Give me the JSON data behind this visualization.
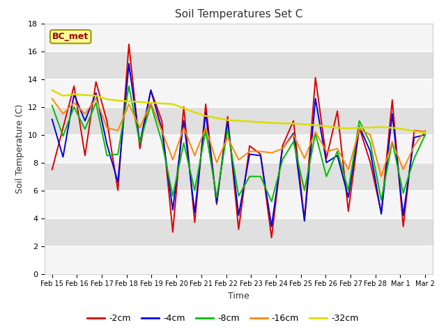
{
  "title": "Soil Temperatures Set C",
  "xlabel": "Time",
  "ylabel": "Soil Temperature (C)",
  "ylim": [
    0,
    18
  ],
  "annotation": "BC_met",
  "legend_entries": [
    "-2cm",
    "-4cm",
    "-8cm",
    "-16cm",
    "-32cm"
  ],
  "line_colors": [
    "#dd0000",
    "#0000dd",
    "#00bb00",
    "#ff8800",
    "#dddd00"
  ],
  "line_widths": [
    1.4,
    1.4,
    1.4,
    1.4,
    1.8
  ],
  "x_tick_labels": [
    "Feb 15",
    "Feb 16",
    "Feb 17",
    "Feb 18",
    "Feb 19",
    "Feb 20",
    "Feb 21",
    "Feb 22",
    "Feb 23",
    "Feb 24",
    "Feb 25",
    "Feb 26",
    "Feb 27",
    "Feb 28",
    "Mar 1",
    "Mar 2"
  ],
  "series_neg2cm": [
    7.5,
    10.5,
    13.5,
    8.5,
    13.8,
    11.0,
    6.0,
    16.5,
    9.0,
    13.2,
    11.0,
    3.0,
    12.0,
    3.7,
    12.2,
    5.0,
    11.3,
    3.2,
    9.2,
    8.6,
    2.6,
    9.2,
    11.0,
    3.9,
    14.1,
    8.3,
    11.7,
    4.5,
    10.5,
    8.0,
    4.4,
    12.5,
    3.4,
    10.3,
    10.2
  ],
  "series_neg4cm": [
    11.1,
    8.4,
    12.9,
    11.0,
    13.0,
    9.3,
    6.6,
    15.1,
    9.4,
    13.2,
    10.4,
    4.6,
    11.0,
    4.4,
    11.6,
    5.1,
    11.0,
    4.2,
    8.6,
    8.5,
    3.4,
    9.0,
    10.1,
    3.8,
    12.6,
    8.0,
    8.5,
    5.5,
    10.6,
    8.8,
    4.3,
    11.5,
    4.2,
    9.8,
    10.0
  ],
  "series_neg8cm": [
    12.1,
    9.9,
    12.0,
    10.4,
    12.3,
    8.5,
    8.6,
    13.5,
    9.4,
    12.2,
    9.5,
    5.6,
    9.4,
    6.0,
    10.3,
    5.5,
    10.4,
    5.6,
    7.0,
    7.0,
    5.2,
    8.2,
    9.5,
    6.0,
    10.1,
    7.0,
    8.8,
    6.0,
    11.0,
    9.4,
    5.3,
    9.5,
    5.8,
    8.3,
    10.0
  ],
  "series_neg16cm": [
    12.6,
    11.5,
    12.3,
    11.5,
    12.6,
    10.5,
    10.3,
    12.2,
    10.5,
    12.3,
    10.3,
    8.2,
    10.5,
    8.5,
    10.5,
    8.0,
    9.8,
    8.2,
    8.8,
    8.8,
    8.7,
    9.0,
    10.0,
    8.3,
    10.2,
    8.8,
    9.0,
    7.5,
    10.4,
    10.0,
    7.0,
    9.5,
    7.5,
    9.2,
    10.3
  ],
  "series_neg32cm": [
    13.2,
    12.8,
    12.9,
    12.85,
    12.8,
    12.55,
    12.45,
    12.4,
    12.35,
    12.3,
    12.25,
    12.2,
    11.9,
    11.6,
    11.35,
    11.2,
    11.05,
    11.0,
    10.95,
    10.9,
    10.85,
    10.82,
    10.8,
    10.75,
    10.68,
    10.6,
    10.5,
    10.45,
    10.5,
    10.52,
    10.55,
    10.5,
    10.4,
    10.25,
    10.15
  ]
}
